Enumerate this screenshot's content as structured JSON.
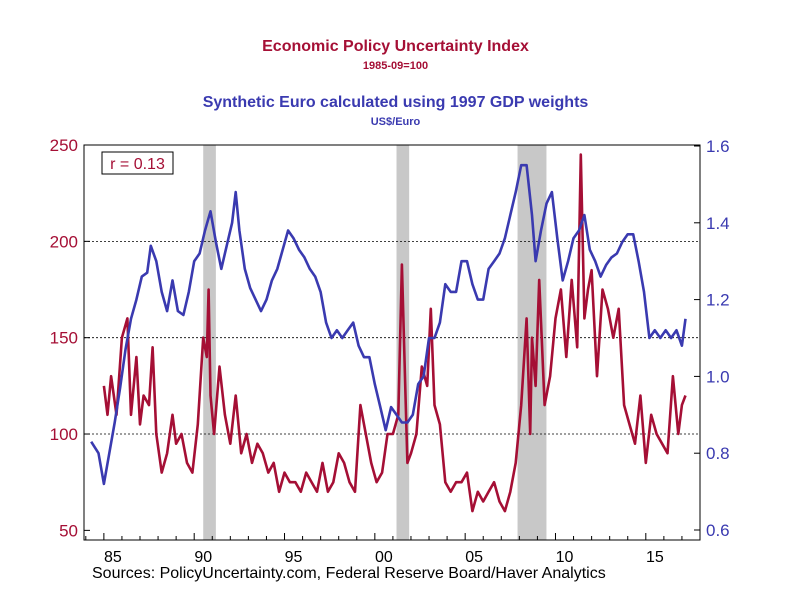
{
  "chart_data": {
    "type": "line",
    "titles": [
      {
        "text": "Economic Policy Uncertainty Index",
        "subtitle": "1985-09=100"
      },
      {
        "text": "Synthetic Euro calculated using 1997 GDP weights",
        "subtitle": "US$/Euro"
      }
    ],
    "source": "Sources:  PolicyUncertainty.com, Federal Reserve Board/Haver Analytics",
    "annotation": "r = 0.13",
    "colors": {
      "epu": "#a50f35",
      "euro": "#3a3ab0",
      "recession": "#c8c8c8",
      "grid": "#000000"
    },
    "x_axis": {
      "range": [
        1983.9,
        2018.0
      ],
      "ticks": [
        {
          "v": 1985,
          "label": "85"
        },
        {
          "v": 1990,
          "label": "90"
        },
        {
          "v": 1995,
          "label": "95"
        },
        {
          "v": 2000,
          "label": "00"
        },
        {
          "v": 2005,
          "label": "05"
        },
        {
          "v": 2010,
          "label": "10"
        },
        {
          "v": 2015,
          "label": "15"
        }
      ]
    },
    "y_left": {
      "range": [
        45,
        250
      ],
      "ticks": [
        50,
        100,
        150,
        200,
        250
      ]
    },
    "y_right": {
      "range": [
        0.6,
        1.6
      ],
      "ticks": [
        "0.6",
        "0.8",
        "1.0",
        "1.2",
        "1.4",
        "1.6"
      ]
    },
    "gridlines_left": [
      100,
      150,
      200
    ],
    "recession_bands": [
      [
        1990.5,
        1991.2
      ],
      [
        2001.2,
        2001.9
      ],
      [
        2007.9,
        2009.5
      ]
    ],
    "series": [
      {
        "name": "Economic Policy Uncertainty Index",
        "axis": "left",
        "x": [
          1985.0,
          1985.2,
          1985.4,
          1985.7,
          1986.0,
          1986.3,
          1986.5,
          1986.8,
          1987.0,
          1987.2,
          1987.5,
          1987.7,
          1987.9,
          1988.2,
          1988.5,
          1988.8,
          1989.0,
          1989.3,
          1989.6,
          1989.9,
          1990.2,
          1990.5,
          1990.7,
          1990.8,
          1990.9,
          1991.1,
          1991.4,
          1991.7,
          1992.0,
          1992.3,
          1992.6,
          1992.9,
          1993.2,
          1993.5,
          1993.8,
          1994.1,
          1994.4,
          1994.7,
          1995.0,
          1995.3,
          1995.6,
          1995.9,
          1996.2,
          1996.5,
          1996.8,
          1997.1,
          1997.4,
          1997.7,
          1998.0,
          1998.3,
          1998.6,
          1998.9,
          1999.2,
          1999.5,
          1999.8,
          2000.1,
          2000.4,
          2000.7,
          2001.0,
          2001.3,
          2001.5,
          2001.7,
          2001.8,
          2002.0,
          2002.3,
          2002.6,
          2002.9,
          2003.1,
          2003.3,
          2003.6,
          2003.9,
          2004.2,
          2004.5,
          2004.8,
          2005.1,
          2005.4,
          2005.7,
          2006.0,
          2006.3,
          2006.6,
          2006.9,
          2007.2,
          2007.5,
          2007.8,
          2008.1,
          2008.4,
          2008.6,
          2008.7,
          2008.9,
          2009.1,
          2009.4,
          2009.7,
          2010.0,
          2010.3,
          2010.6,
          2010.9,
          2011.2,
          2011.4,
          2011.6,
          2011.8,
          2012.0,
          2012.3,
          2012.6,
          2012.9,
          2013.2,
          2013.5,
          2013.8,
          2014.1,
          2014.4,
          2014.7,
          2015.0,
          2015.3,
          2015.6,
          2015.9,
          2016.2,
          2016.5,
          2016.8,
          2017.0,
          2017.2
        ],
        "values": [
          125,
          110,
          130,
          110,
          150,
          160,
          110,
          140,
          105,
          120,
          115,
          145,
          100,
          80,
          90,
          110,
          95,
          100,
          85,
          80,
          105,
          150,
          140,
          175,
          120,
          100,
          135,
          110,
          95,
          120,
          90,
          100,
          85,
          95,
          90,
          80,
          85,
          70,
          80,
          75,
          75,
          70,
          80,
          75,
          70,
          85,
          70,
          75,
          90,
          85,
          75,
          70,
          115,
          100,
          85,
          75,
          80,
          100,
          100,
          110,
          188,
          120,
          85,
          90,
          100,
          135,
          125,
          165,
          115,
          105,
          75,
          70,
          75,
          75,
          80,
          60,
          70,
          65,
          70,
          75,
          65,
          60,
          70,
          85,
          115,
          160,
          100,
          150,
          125,
          180,
          115,
          130,
          160,
          175,
          140,
          180,
          145,
          245,
          160,
          175,
          185,
          130,
          175,
          165,
          150,
          165,
          115,
          105,
          95,
          120,
          85,
          110,
          100,
          95,
          90,
          130,
          100,
          115,
          120
        ]
      },
      {
        "name": "Synthetic Euro calculated using 1997 GDP weights",
        "axis": "right",
        "x": [
          1984.3,
          1984.7,
          1985.0,
          1985.3,
          1985.6,
          1985.9,
          1986.2,
          1986.5,
          1986.8,
          1987.1,
          1987.4,
          1987.6,
          1987.9,
          1988.2,
          1988.5,
          1988.8,
          1989.1,
          1989.4,
          1989.7,
          1990.0,
          1990.3,
          1990.6,
          1990.9,
          1991.2,
          1991.5,
          1991.8,
          1992.1,
          1992.3,
          1992.5,
          1992.8,
          1993.1,
          1993.4,
          1993.7,
          1994.0,
          1994.3,
          1994.6,
          1994.9,
          1995.2,
          1995.5,
          1995.8,
          1996.1,
          1996.4,
          1996.7,
          1997.0,
          1997.3,
          1997.6,
          1997.9,
          1998.2,
          1998.5,
          1998.8,
          1999.1,
          1999.4,
          1999.7,
          2000.0,
          2000.3,
          2000.6,
          2000.9,
          2001.2,
          2001.5,
          2001.8,
          2002.1,
          2002.4,
          2002.7,
          2003.0,
          2003.3,
          2003.6,
          2003.9,
          2004.2,
          2004.5,
          2004.8,
          2005.1,
          2005.4,
          2005.7,
          2006.0,
          2006.3,
          2006.6,
          2006.9,
          2007.2,
          2007.5,
          2007.8,
          2008.1,
          2008.4,
          2008.7,
          2008.9,
          2009.2,
          2009.5,
          2009.8,
          2010.1,
          2010.4,
          2010.7,
          2011.0,
          2011.3,
          2011.6,
          2011.9,
          2012.2,
          2012.5,
          2012.8,
          2013.1,
          2013.4,
          2013.7,
          2014.0,
          2014.3,
          2014.6,
          2014.9,
          2015.2,
          2015.5,
          2015.8,
          2016.1,
          2016.4,
          2016.7,
          2017.0,
          2017.2
        ],
        "values": [
          0.83,
          0.8,
          0.72,
          0.8,
          0.88,
          0.97,
          1.07,
          1.15,
          1.2,
          1.26,
          1.27,
          1.34,
          1.3,
          1.22,
          1.17,
          1.25,
          1.17,
          1.16,
          1.22,
          1.3,
          1.32,
          1.38,
          1.43,
          1.35,
          1.28,
          1.34,
          1.4,
          1.48,
          1.38,
          1.28,
          1.23,
          1.2,
          1.17,
          1.2,
          1.25,
          1.28,
          1.33,
          1.38,
          1.36,
          1.33,
          1.31,
          1.28,
          1.26,
          1.22,
          1.14,
          1.1,
          1.12,
          1.1,
          1.12,
          1.14,
          1.08,
          1.05,
          1.05,
          0.98,
          0.92,
          0.86,
          0.92,
          0.9,
          0.88,
          0.88,
          0.9,
          0.98,
          1.0,
          1.1,
          1.1,
          1.14,
          1.24,
          1.22,
          1.22,
          1.3,
          1.3,
          1.24,
          1.2,
          1.2,
          1.28,
          1.3,
          1.32,
          1.36,
          1.42,
          1.48,
          1.55,
          1.55,
          1.42,
          1.3,
          1.38,
          1.45,
          1.48,
          1.36,
          1.25,
          1.3,
          1.36,
          1.38,
          1.42,
          1.33,
          1.3,
          1.26,
          1.29,
          1.31,
          1.32,
          1.35,
          1.37,
          1.37,
          1.3,
          1.22,
          1.1,
          1.12,
          1.1,
          1.12,
          1.1,
          1.12,
          1.08,
          1.15
        ]
      }
    ]
  }
}
